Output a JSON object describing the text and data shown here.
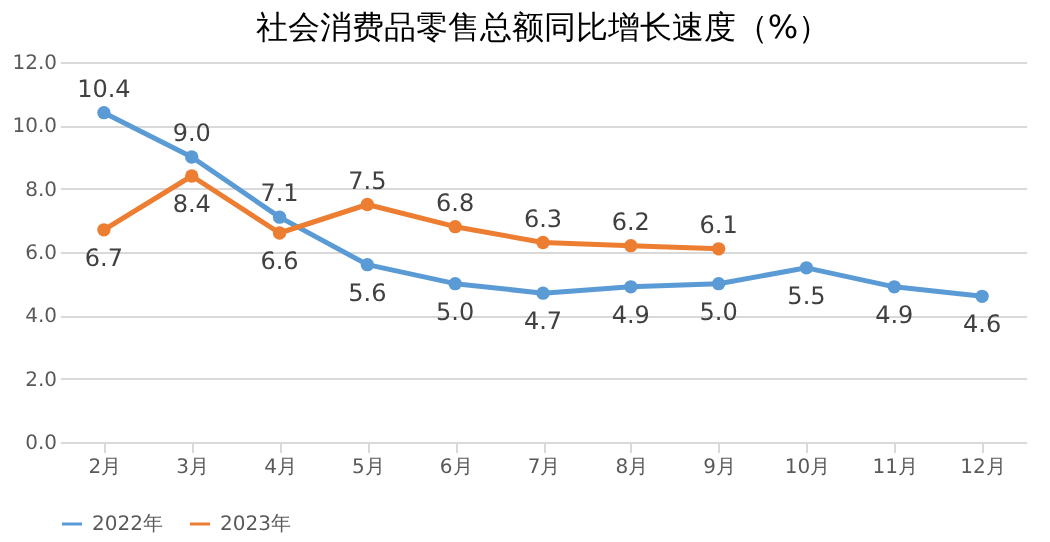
{
  "chart_data": {
    "type": "line",
    "title": "社会消费品零售总额同比增长速度（%）",
    "categories": [
      "2月",
      "3月",
      "4月",
      "5月",
      "6月",
      "7月",
      "8月",
      "9月",
      "10月",
      "11月",
      "12月"
    ],
    "series": [
      {
        "name": "2022年",
        "color": "#5b9bd5",
        "values": [
          10.4,
          9.0,
          7.1,
          5.6,
          5.0,
          4.7,
          4.9,
          5.0,
          5.5,
          4.9,
          4.6
        ],
        "value_labels": [
          "10.4",
          "9.0",
          "7.1",
          "5.6",
          "5.0",
          "4.7",
          "4.9",
          "5.0",
          "5.5",
          "4.9",
          "4.6"
        ]
      },
      {
        "name": "2023年",
        "color": "#ed7d31",
        "values": [
          6.7,
          8.4,
          6.6,
          7.5,
          6.8,
          6.3,
          6.2,
          6.1,
          null,
          null,
          null
        ],
        "value_labels": [
          "6.7",
          "8.4",
          "6.6",
          "7.5",
          "6.8",
          "6.3",
          "6.2",
          "6.1",
          null,
          null,
          null
        ]
      }
    ],
    "ylim": [
      0,
      12
    ],
    "yticks": [
      {
        "value": 0,
        "label": "0.0"
      },
      {
        "value": 2,
        "label": "2.0"
      },
      {
        "value": 4,
        "label": "4.0"
      },
      {
        "value": 6,
        "label": "6.0"
      },
      {
        "value": 8,
        "label": "8.0"
      },
      {
        "value": 10,
        "label": "10.0"
      },
      {
        "value": 12,
        "label": "12.0"
      }
    ],
    "grid": "y",
    "legend": "bottom",
    "marker": "circle",
    "line_style": "solid"
  }
}
